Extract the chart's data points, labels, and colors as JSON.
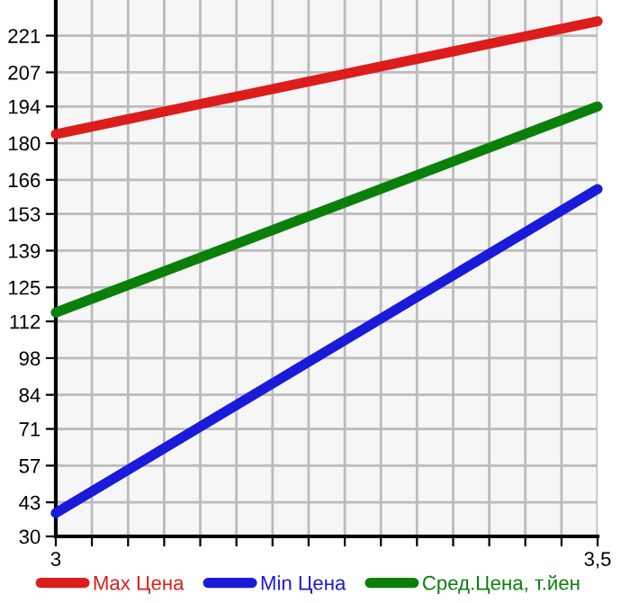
{
  "chart_data": {
    "type": "line",
    "x": [
      3,
      3.5
    ],
    "xlim": [
      3,
      3.5
    ],
    "xticks": [
      {
        "value": 3,
        "label": "3"
      },
      {
        "value": 3.0333,
        "label": null
      },
      {
        "value": 3.0667,
        "label": null
      },
      {
        "value": 3.1,
        "label": null
      },
      {
        "value": 3.1333,
        "label": null
      },
      {
        "value": 3.1667,
        "label": null
      },
      {
        "value": 3.2,
        "label": null
      },
      {
        "value": 3.2333,
        "label": null
      },
      {
        "value": 3.2667,
        "label": null
      },
      {
        "value": 3.3,
        "label": null
      },
      {
        "value": 3.3333,
        "label": null
      },
      {
        "value": 3.3667,
        "label": null
      },
      {
        "value": 3.4,
        "label": null
      },
      {
        "value": 3.4333,
        "label": null
      },
      {
        "value": 3.4667,
        "label": null
      },
      {
        "value": 3.5,
        "label": "3,5"
      }
    ],
    "ylim": [
      30,
      234.6
    ],
    "yticks": [
      30,
      43,
      57,
      71,
      84,
      98,
      112,
      125,
      139,
      153,
      166,
      180,
      194,
      207,
      221
    ],
    "series": [
      {
        "name": "Max Цена",
        "color": "#dd1c1c",
        "values": [
          183.4,
          226.5
        ]
      },
      {
        "name": "Min Цена",
        "color": "#1a1adb",
        "values": [
          38.9,
          162.5
        ]
      },
      {
        "name": "Сред.Цена, т.йен",
        "color": "#0a800a",
        "values": [
          115.4,
          194
        ]
      }
    ],
    "grid": true,
    "legend": "bottom",
    "marker": "none",
    "line_style": "solid"
  }
}
